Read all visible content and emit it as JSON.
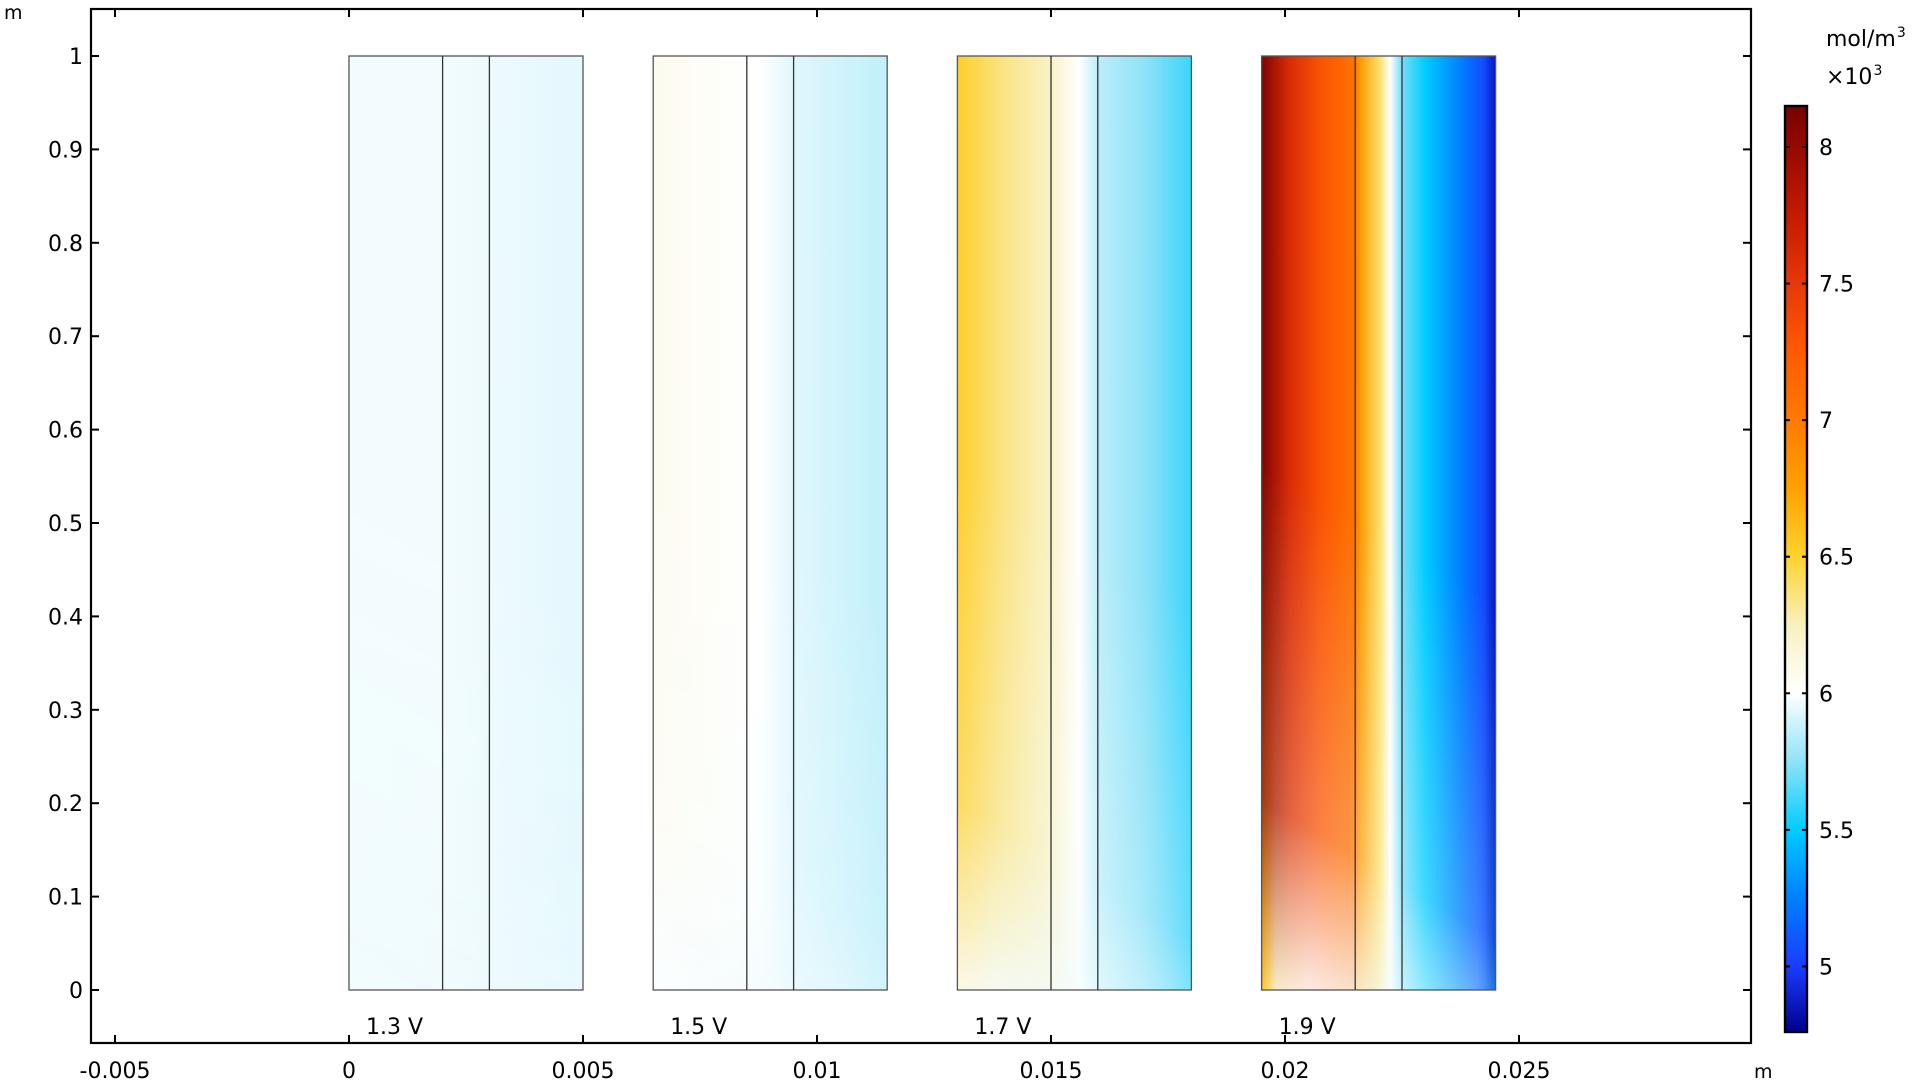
{
  "chart_data": {
    "type": "heatmap",
    "title": "",
    "xlabel": "",
    "ylabel": "",
    "x_unit": "m",
    "y_unit": "m",
    "xlim": [
      -0.0055,
      0.0301
    ],
    "ylim": [
      -0.057,
      1.05
    ],
    "x_ticks": [
      -0.005,
      0,
      0.005,
      0.01,
      0.015,
      0.02,
      0.025
    ],
    "x_tick_labels": [
      "-0.005",
      "0",
      "0.005",
      "0.01",
      "0.015",
      "0.02",
      "0.025"
    ],
    "y_ticks": [
      0,
      0.1,
      0.2,
      0.3,
      0.4,
      0.5,
      0.6,
      0.7,
      0.8,
      0.9,
      1
    ],
    "y_tick_labels": [
      "0",
      "0.1",
      "0.2",
      "0.3",
      "0.4",
      "0.5",
      "0.6",
      "0.7",
      "0.8",
      "0.9",
      "1"
    ],
    "grid": false,
    "colorbar": {
      "unit": "mol/m",
      "unit_sup": "3",
      "scale": "×10",
      "scale_sup": "3",
      "range": [
        4.76,
        8.15
      ],
      "ticks": [
        5,
        5.5,
        6,
        6.5,
        7,
        7.5,
        8
      ],
      "tick_labels": [
        "5",
        "5.5",
        "6",
        "6.5",
        "7",
        "7.5",
        "8"
      ],
      "colormap": [
        {
          "v": 4.76,
          "c": "#00008c"
        },
        {
          "v": 5.0,
          "c": "#1a3cff"
        },
        {
          "v": 5.25,
          "c": "#0080ff"
        },
        {
          "v": 5.5,
          "c": "#00ccff"
        },
        {
          "v": 5.75,
          "c": "#8fe2f7"
        },
        {
          "v": 6.0,
          "c": "#ffffff"
        },
        {
          "v": 6.25,
          "c": "#f8f0c0"
        },
        {
          "v": 6.5,
          "c": "#fed22d"
        },
        {
          "v": 6.75,
          "c": "#ffa100"
        },
        {
          "v": 7.0,
          "c": "#ff7a00"
        },
        {
          "v": 7.25,
          "c": "#ff5a00"
        },
        {
          "v": 7.5,
          "c": "#e5380a"
        },
        {
          "v": 7.75,
          "c": "#c41a00"
        },
        {
          "v": 8.15,
          "c": "#780000"
        }
      ]
    },
    "domains": [
      {
        "label": "1.3 V",
        "x0": 0.0,
        "x1": 0.005,
        "dividers": [
          0.002,
          0.003
        ],
        "top_profile": [
          {
            "at": 0.0,
            "v": 5.97
          },
          {
            "at": 0.4,
            "v": 5.97
          },
          {
            "at": 0.6,
            "v": 5.96
          },
          {
            "at": 1.0,
            "v": 5.94
          }
        ],
        "bottom_profile": [
          {
            "at": 0.0,
            "v": 5.97
          },
          {
            "at": 1.0,
            "v": 5.96
          }
        ]
      },
      {
        "label": "1.5 V",
        "x0": 0.0065,
        "x1": 0.0115,
        "dividers": [
          0.0085,
          0.0095
        ],
        "top_profile": [
          {
            "at": 0.0,
            "v": 6.06
          },
          {
            "at": 0.3,
            "v": 6.02
          },
          {
            "at": 0.45,
            "v": 6.0
          },
          {
            "at": 0.6,
            "v": 5.93
          },
          {
            "at": 1.0,
            "v": 5.86
          }
        ],
        "bottom_profile": [
          {
            "at": 0.0,
            "v": 5.99
          },
          {
            "at": 0.5,
            "v": 5.97
          },
          {
            "at": 1.0,
            "v": 5.95
          }
        ]
      },
      {
        "label": "1.7 V",
        "x0": 0.013,
        "x1": 0.018,
        "dividers": [
          0.015,
          0.016
        ],
        "top_profile": [
          {
            "at": 0.0,
            "v": 6.52
          },
          {
            "at": 0.2,
            "v": 6.35
          },
          {
            "at": 0.4,
            "v": 6.22
          },
          {
            "at": 0.52,
            "v": 6.0
          },
          {
            "at": 0.6,
            "v": 5.85
          },
          {
            "at": 0.8,
            "v": 5.75
          },
          {
            "at": 1.0,
            "v": 5.6
          }
        ],
        "bottom_profile": [
          {
            "at": 0.0,
            "v": 6.1
          },
          {
            "at": 0.15,
            "v": 5.98
          },
          {
            "at": 0.6,
            "v": 5.97
          },
          {
            "at": 0.9,
            "v": 5.93
          },
          {
            "at": 1.0,
            "v": 5.88
          }
        ]
      },
      {
        "label": "1.9 V",
        "x0": 0.0195,
        "x1": 0.0245,
        "dividers": [
          0.0215,
          0.0225
        ],
        "top_profile": [
          {
            "at": 0.0,
            "v": 8.1
          },
          {
            "at": 0.12,
            "v": 7.6
          },
          {
            "at": 0.25,
            "v": 7.3
          },
          {
            "at": 0.4,
            "v": 7.05
          },
          {
            "at": 0.42,
            "v": 6.8
          },
          {
            "at": 0.5,
            "v": 6.4
          },
          {
            "at": 0.55,
            "v": 6.0
          },
          {
            "at": 0.6,
            "v": 5.7
          },
          {
            "at": 0.7,
            "v": 5.5
          },
          {
            "at": 0.85,
            "v": 5.25
          },
          {
            "at": 0.95,
            "v": 5.05
          },
          {
            "at": 1.0,
            "v": 4.85
          }
        ],
        "bottom_profile": [
          {
            "at": 0.0,
            "v": 6.55
          },
          {
            "at": 0.06,
            "v": 6.2
          },
          {
            "at": 0.2,
            "v": 6.0
          },
          {
            "at": 0.6,
            "v": 5.97
          },
          {
            "at": 0.92,
            "v": 5.85
          },
          {
            "at": 1.0,
            "v": 5.6
          }
        ]
      }
    ]
  }
}
